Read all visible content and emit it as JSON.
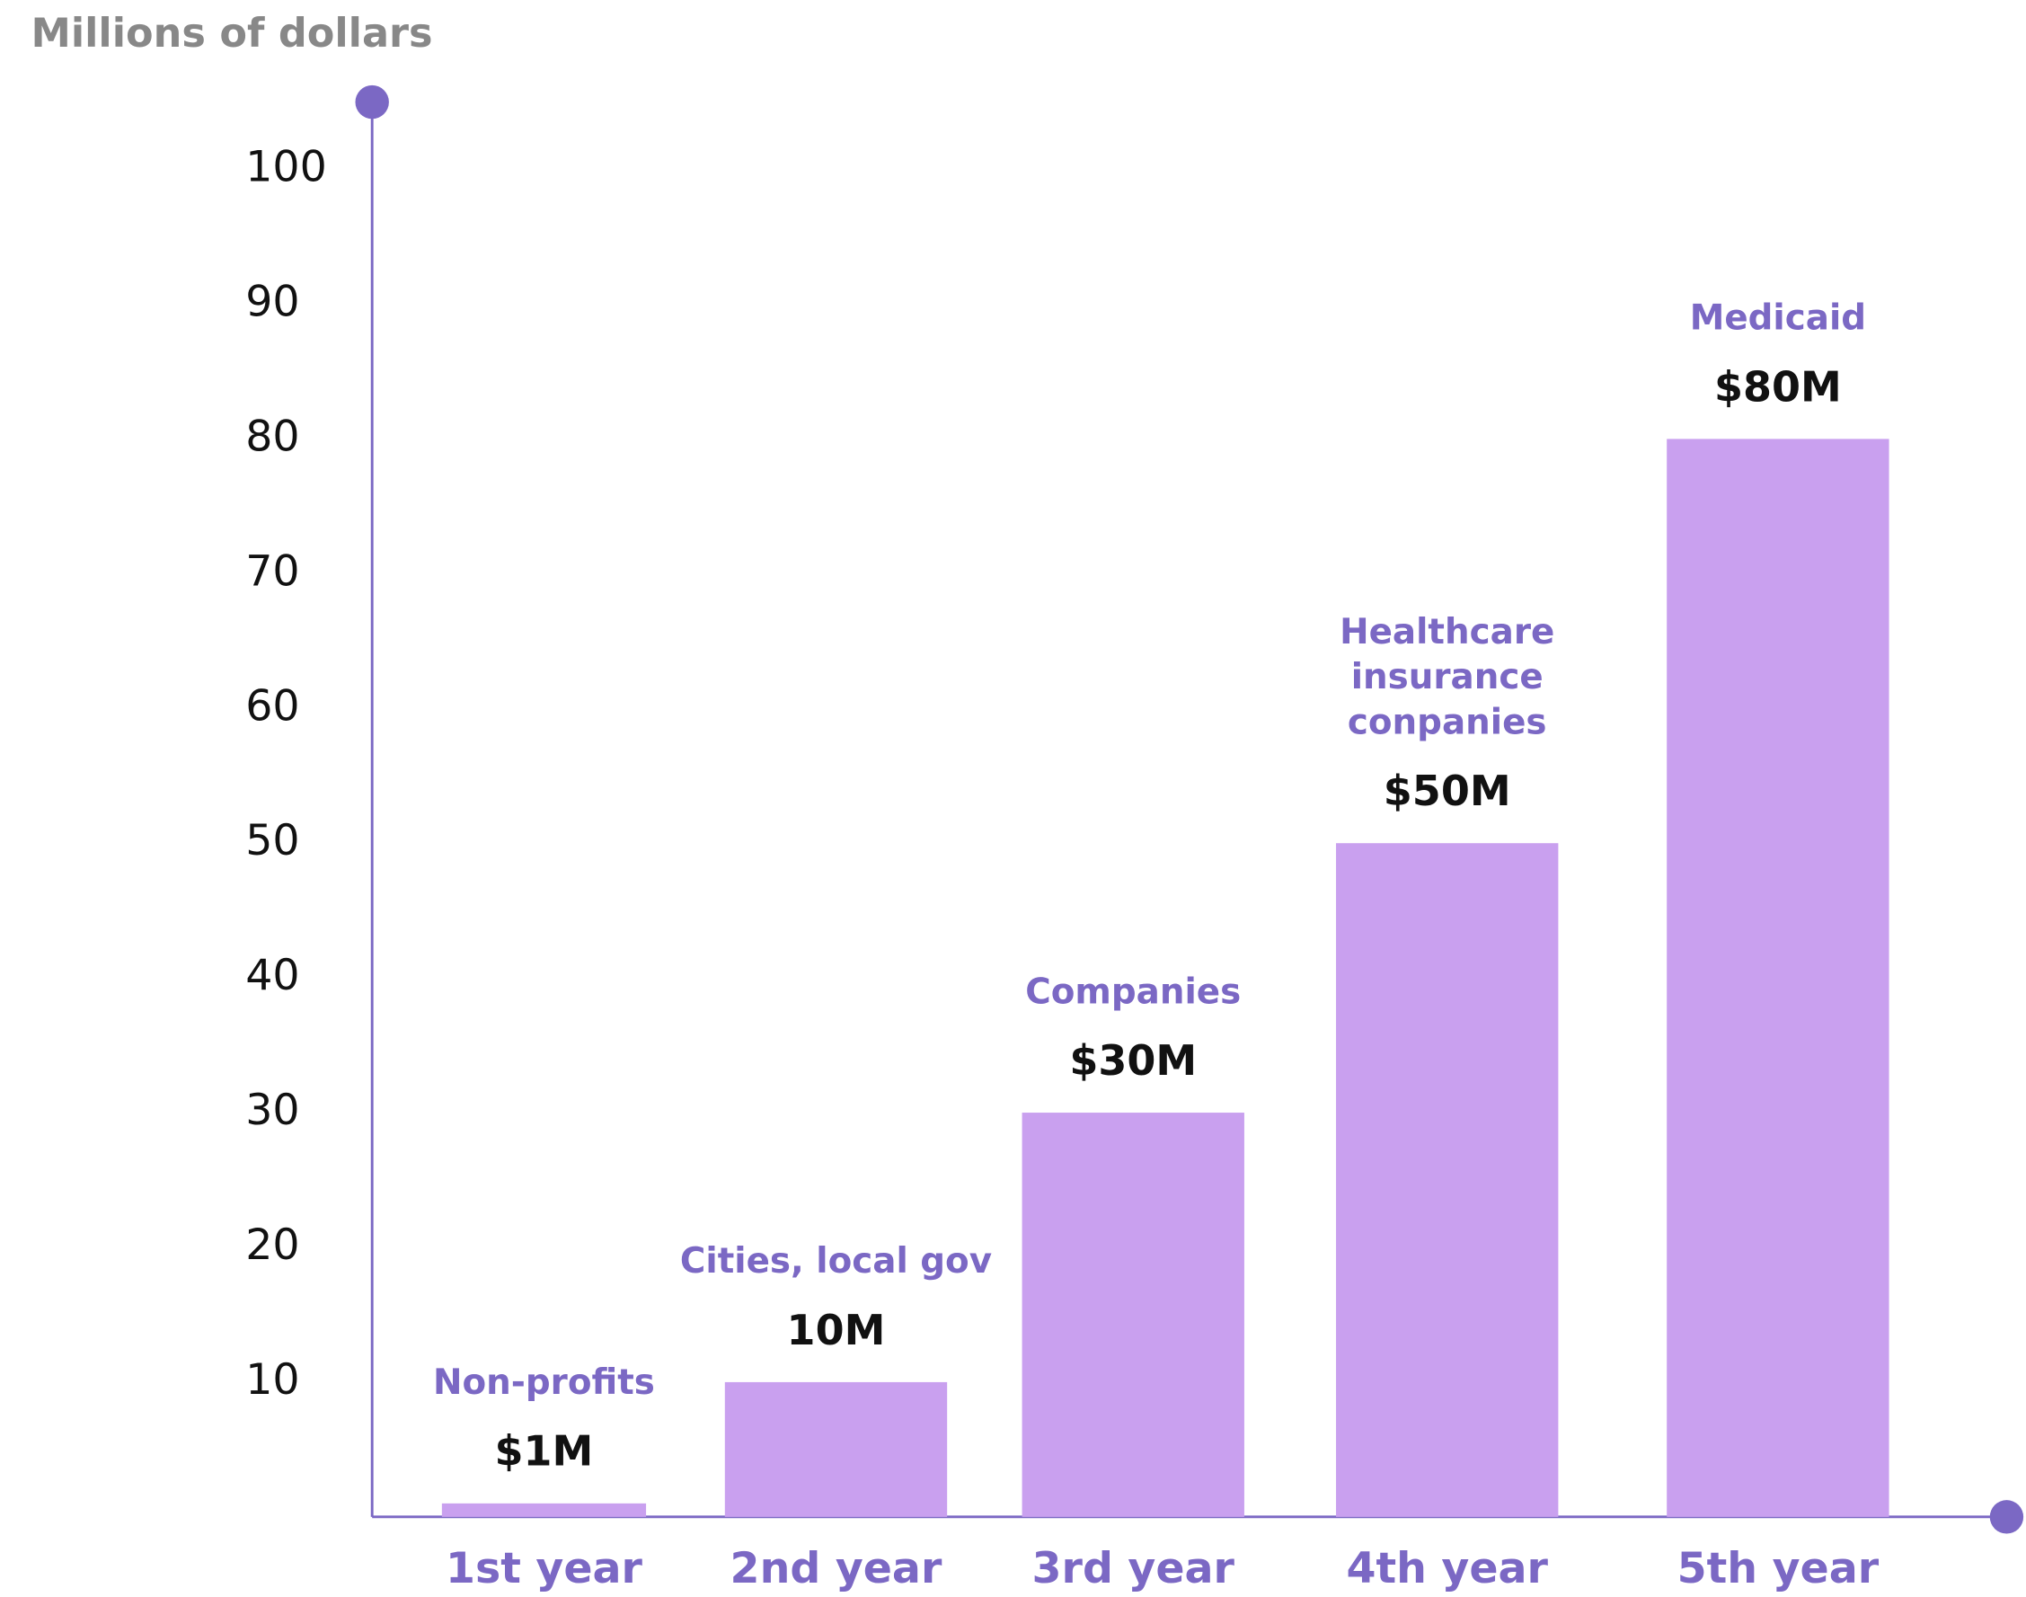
{
  "chart_data": {
    "type": "bar",
    "y_axis_label": "Millions of dollars",
    "categories": [
      "1st year",
      "2nd year",
      "3rd year",
      "4th year",
      "5th year"
    ],
    "values": [
      1,
      10,
      30,
      50,
      80
    ],
    "value_labels": [
      "$1M",
      "10M",
      "$30M",
      "$50M",
      "$80M"
    ],
    "annotations": [
      [
        "Non-profits"
      ],
      [
        "Cities, local gov"
      ],
      [
        "Companies"
      ],
      [
        "Healthcare",
        "insurance",
        "conpanies"
      ],
      [
        "Medicaid"
      ]
    ],
    "color": "#c9a0ef",
    "axis_color": "#7b68c4",
    "ylim": [
      0,
      105
    ],
    "yticks": [
      10,
      20,
      30,
      40,
      50,
      60,
      70,
      80,
      90,
      100
    ],
    "grid": false
  }
}
